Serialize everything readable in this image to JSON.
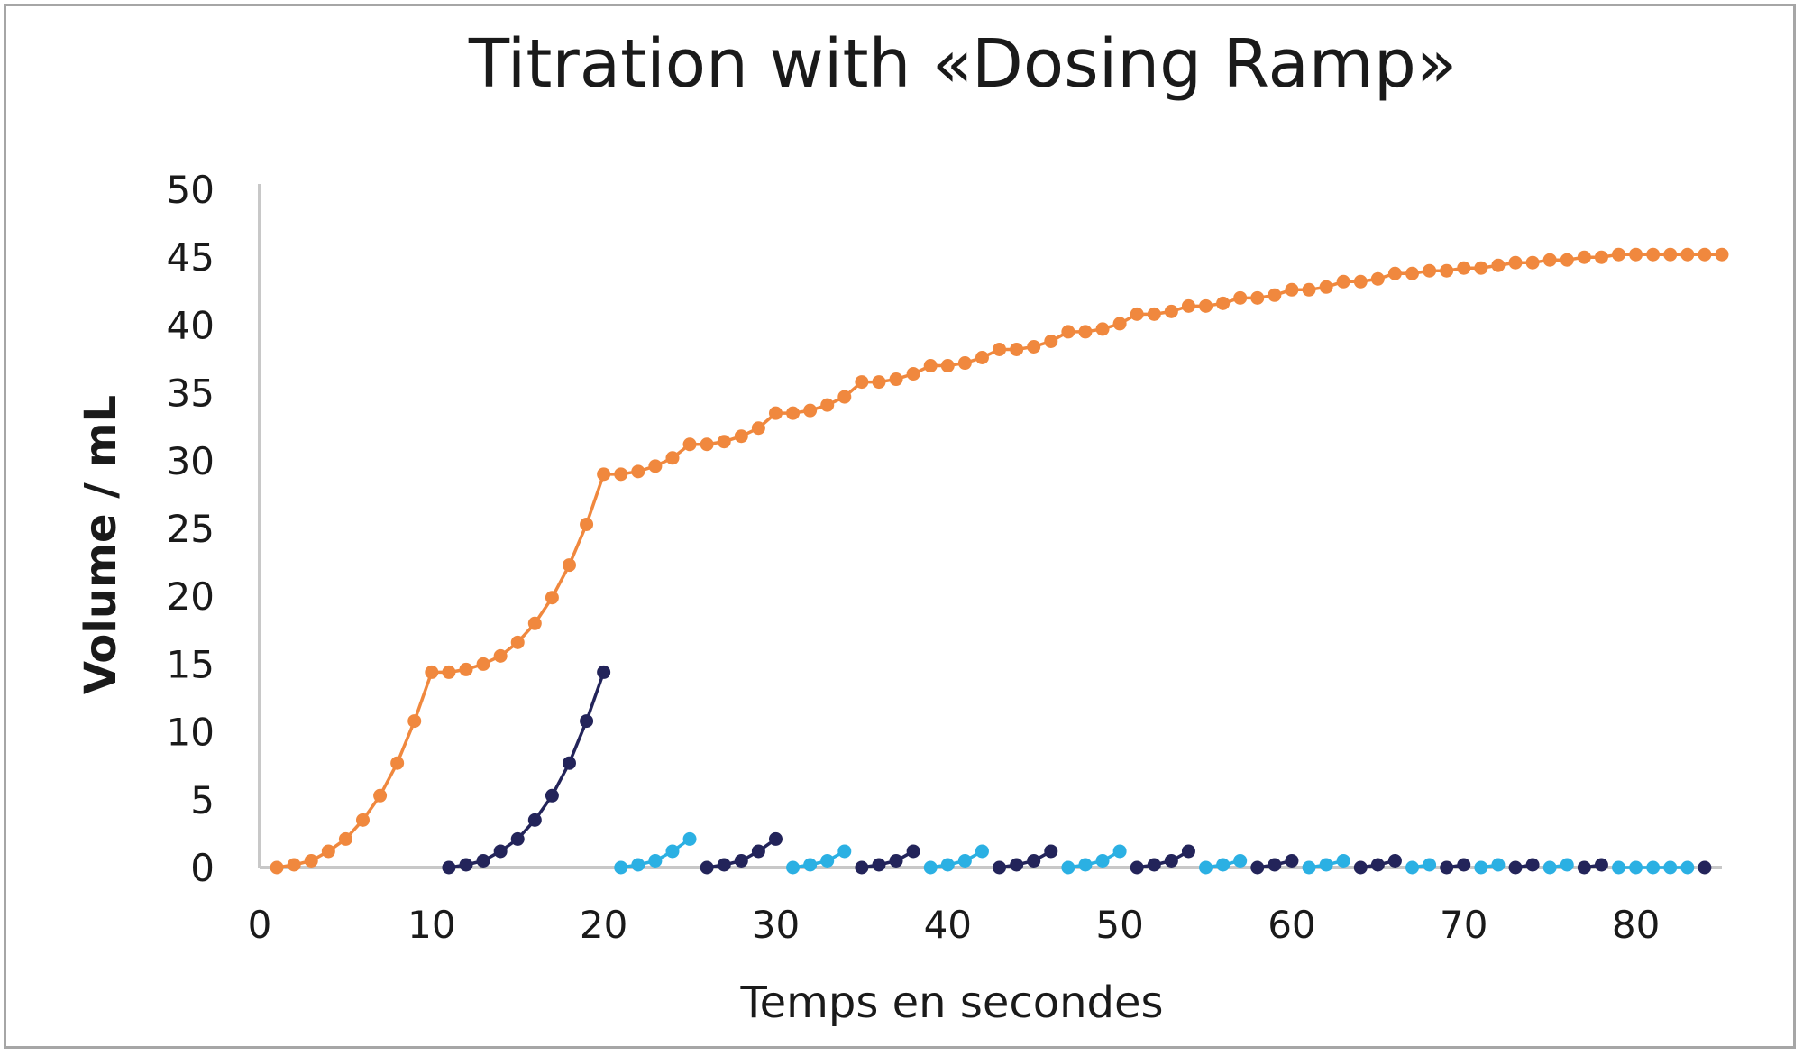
{
  "chart_data": {
    "type": "line",
    "title": "Titration with «Dosing Ramp»",
    "xlabel": "Temps en secondes",
    "ylabel": "Volume / mL",
    "xlim": [
      0,
      85
    ],
    "ylim": [
      0,
      50
    ],
    "xticks": [
      0,
      10,
      20,
      30,
      40,
      50,
      60,
      70,
      80
    ],
    "yticks": [
      0,
      5,
      10,
      15,
      20,
      25,
      30,
      35,
      40,
      45,
      50
    ],
    "grid": false,
    "legend": "none",
    "colors": {
      "cumulative": "#f0883e",
      "dark_ramps": "#23245a",
      "light_ramps": "#2bb0e3",
      "axis": "#c8c8c8"
    },
    "series": [
      {
        "color_key": "cumulative",
        "x": [
          1,
          2,
          3,
          4,
          5,
          6,
          7,
          8,
          9,
          10,
          11,
          12,
          13,
          14,
          15,
          16,
          17,
          18,
          19,
          20,
          21,
          22,
          23,
          24,
          25,
          26,
          27,
          28,
          29,
          30,
          31,
          32,
          33,
          34,
          35,
          36,
          37,
          38,
          39,
          40,
          41,
          42,
          43,
          44,
          45,
          46,
          47,
          48,
          49,
          50,
          51,
          52,
          53,
          54,
          55,
          56,
          57,
          58,
          59,
          60,
          61,
          62,
          63,
          64,
          65,
          66,
          67,
          68,
          69,
          70,
          71,
          72,
          73,
          74,
          75,
          76,
          77,
          78,
          79,
          80,
          81,
          82,
          83,
          84,
          85
        ],
        "y": [
          0,
          0.2,
          0.5,
          1.2,
          2.1,
          3.5,
          5.3,
          7.7,
          10.8,
          14.4,
          14.4,
          14.6,
          15,
          15.6,
          16.6,
          18,
          19.9,
          22.3,
          25.3,
          29,
          29,
          29.2,
          29.6,
          30.2,
          31.2,
          31.2,
          31.4,
          31.8,
          32.4,
          33.5,
          33.5,
          33.7,
          34.1,
          34.7,
          35.8,
          35.8,
          36,
          36.4,
          37,
          37,
          37.2,
          37.6,
          38.2,
          38.2,
          38.4,
          38.8,
          39.5,
          39.5,
          39.7,
          40.1,
          40.8,
          40.8,
          41,
          41.4,
          41.4,
          41.6,
          42,
          42,
          42.2,
          42.6,
          42.6,
          42.8,
          43.2,
          43.2,
          43.4,
          43.8,
          43.8,
          44,
          44,
          44.2,
          44.2,
          44.4,
          44.6,
          44.6,
          44.8,
          44.8,
          45,
          45,
          45.2,
          45.2,
          45.2,
          45.2,
          45.2,
          45.2,
          45.2
        ]
      },
      {
        "color_key": "dark_ramps",
        "x": [
          11,
          12,
          13,
          14,
          15,
          16,
          17,
          18,
          19,
          20
        ],
        "y": [
          0,
          0.2,
          0.5,
          1.2,
          2.1,
          3.5,
          5.3,
          7.7,
          10.8,
          14.4
        ]
      },
      {
        "color_key": "light_ramps",
        "x": [
          21,
          22,
          23,
          24,
          25
        ],
        "y": [
          0,
          0.2,
          0.5,
          1.2,
          2.1
        ]
      },
      {
        "color_key": "dark_ramps",
        "x": [
          26,
          27,
          28,
          29,
          30
        ],
        "y": [
          0,
          0.2,
          0.5,
          1.2,
          2.1
        ]
      },
      {
        "color_key": "light_ramps",
        "x": [
          31,
          32,
          33,
          34
        ],
        "y": [
          0,
          0.2,
          0.5,
          1.2
        ]
      },
      {
        "color_key": "dark_ramps",
        "x": [
          35,
          36,
          37,
          38
        ],
        "y": [
          0,
          0.2,
          0.5,
          1.2
        ]
      },
      {
        "color_key": "light_ramps",
        "x": [
          39,
          40,
          41,
          42
        ],
        "y": [
          0,
          0.2,
          0.5,
          1.2
        ]
      },
      {
        "color_key": "dark_ramps",
        "x": [
          43,
          44,
          45,
          46
        ],
        "y": [
          0,
          0.2,
          0.5,
          1.2
        ]
      },
      {
        "color_key": "light_ramps",
        "x": [
          47,
          48,
          49,
          50
        ],
        "y": [
          0,
          0.2,
          0.5,
          1.2
        ]
      },
      {
        "color_key": "dark_ramps",
        "x": [
          51,
          52,
          53,
          54
        ],
        "y": [
          0,
          0.2,
          0.5,
          1.2
        ]
      },
      {
        "color_key": "light_ramps",
        "x": [
          55,
          56,
          57
        ],
        "y": [
          0,
          0.2,
          0.5
        ]
      },
      {
        "color_key": "dark_ramps",
        "x": [
          58,
          59,
          60
        ],
        "y": [
          0,
          0.2,
          0.5
        ]
      },
      {
        "color_key": "light_ramps",
        "x": [
          61,
          62,
          63
        ],
        "y": [
          0,
          0.2,
          0.5
        ]
      },
      {
        "color_key": "dark_ramps",
        "x": [
          64,
          65,
          66
        ],
        "y": [
          0,
          0.2,
          0.5
        ]
      },
      {
        "color_key": "light_ramps",
        "x": [
          67,
          68
        ],
        "y": [
          0,
          0.2
        ]
      },
      {
        "color_key": "dark_ramps",
        "x": [
          69,
          70
        ],
        "y": [
          0,
          0.2
        ]
      },
      {
        "color_key": "light_ramps",
        "x": [
          71,
          72
        ],
        "y": [
          0,
          0.2
        ]
      },
      {
        "color_key": "dark_ramps",
        "x": [
          73,
          74
        ],
        "y": [
          0,
          0.2
        ]
      },
      {
        "color_key": "light_ramps",
        "x": [
          75,
          76
        ],
        "y": [
          0,
          0.2
        ]
      },
      {
        "color_key": "dark_ramps",
        "x": [
          77,
          78
        ],
        "y": [
          0,
          0.2
        ]
      },
      {
        "color_key": "light_ramps",
        "x": [
          79,
          80,
          81,
          82,
          83
        ],
        "y": [
          0,
          0,
          0,
          0,
          0
        ]
      },
      {
        "color_key": "dark_ramps",
        "x": [
          84
        ],
        "y": [
          0
        ]
      }
    ]
  }
}
